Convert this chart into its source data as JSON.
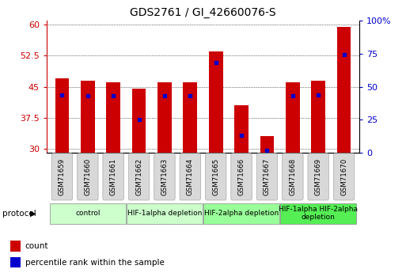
{
  "title": "GDS2761 / GI_42660076-S",
  "samples": [
    "GSM71659",
    "GSM71660",
    "GSM71661",
    "GSM71662",
    "GSM71663",
    "GSM71664",
    "GSM71665",
    "GSM71666",
    "GSM71667",
    "GSM71668",
    "GSM71669",
    "GSM71670"
  ],
  "counts": [
    47.0,
    46.5,
    46.0,
    44.5,
    46.0,
    46.0,
    53.5,
    40.5,
    33.0,
    46.0,
    46.5,
    59.5
  ],
  "percentile_ranks_pct": [
    44.0,
    43.0,
    43.0,
    25.0,
    43.0,
    43.0,
    68.0,
    13.0,
    2.0,
    43.0,
    43.5,
    74.0
  ],
  "bar_color": "#cc0000",
  "marker_color": "#0000cc",
  "ymin": 29,
  "ymax": 61,
  "yticks_left": [
    30,
    37.5,
    45,
    52.5,
    60
  ],
  "yticks_right": [
    0,
    25,
    50,
    75,
    100
  ],
  "y2min": 0,
  "y2max": 100,
  "group_spans": [
    {
      "start": 0,
      "end": 2,
      "label": "control",
      "color": "#ccffcc"
    },
    {
      "start": 3,
      "end": 5,
      "label": "HIF-1alpha depletion",
      "color": "#ccffcc"
    },
    {
      "start": 6,
      "end": 8,
      "label": "HIF-2alpha depletion",
      "color": "#99ff99"
    },
    {
      "start": 9,
      "end": 11,
      "label": "HIF-1alpha HIF-2alpha\ndepletion",
      "color": "#55ee55"
    }
  ],
  "legend_count_label": "count",
  "legend_pct_label": "percentile rank within the sample",
  "bar_width": 0.55,
  "baseline": 29
}
